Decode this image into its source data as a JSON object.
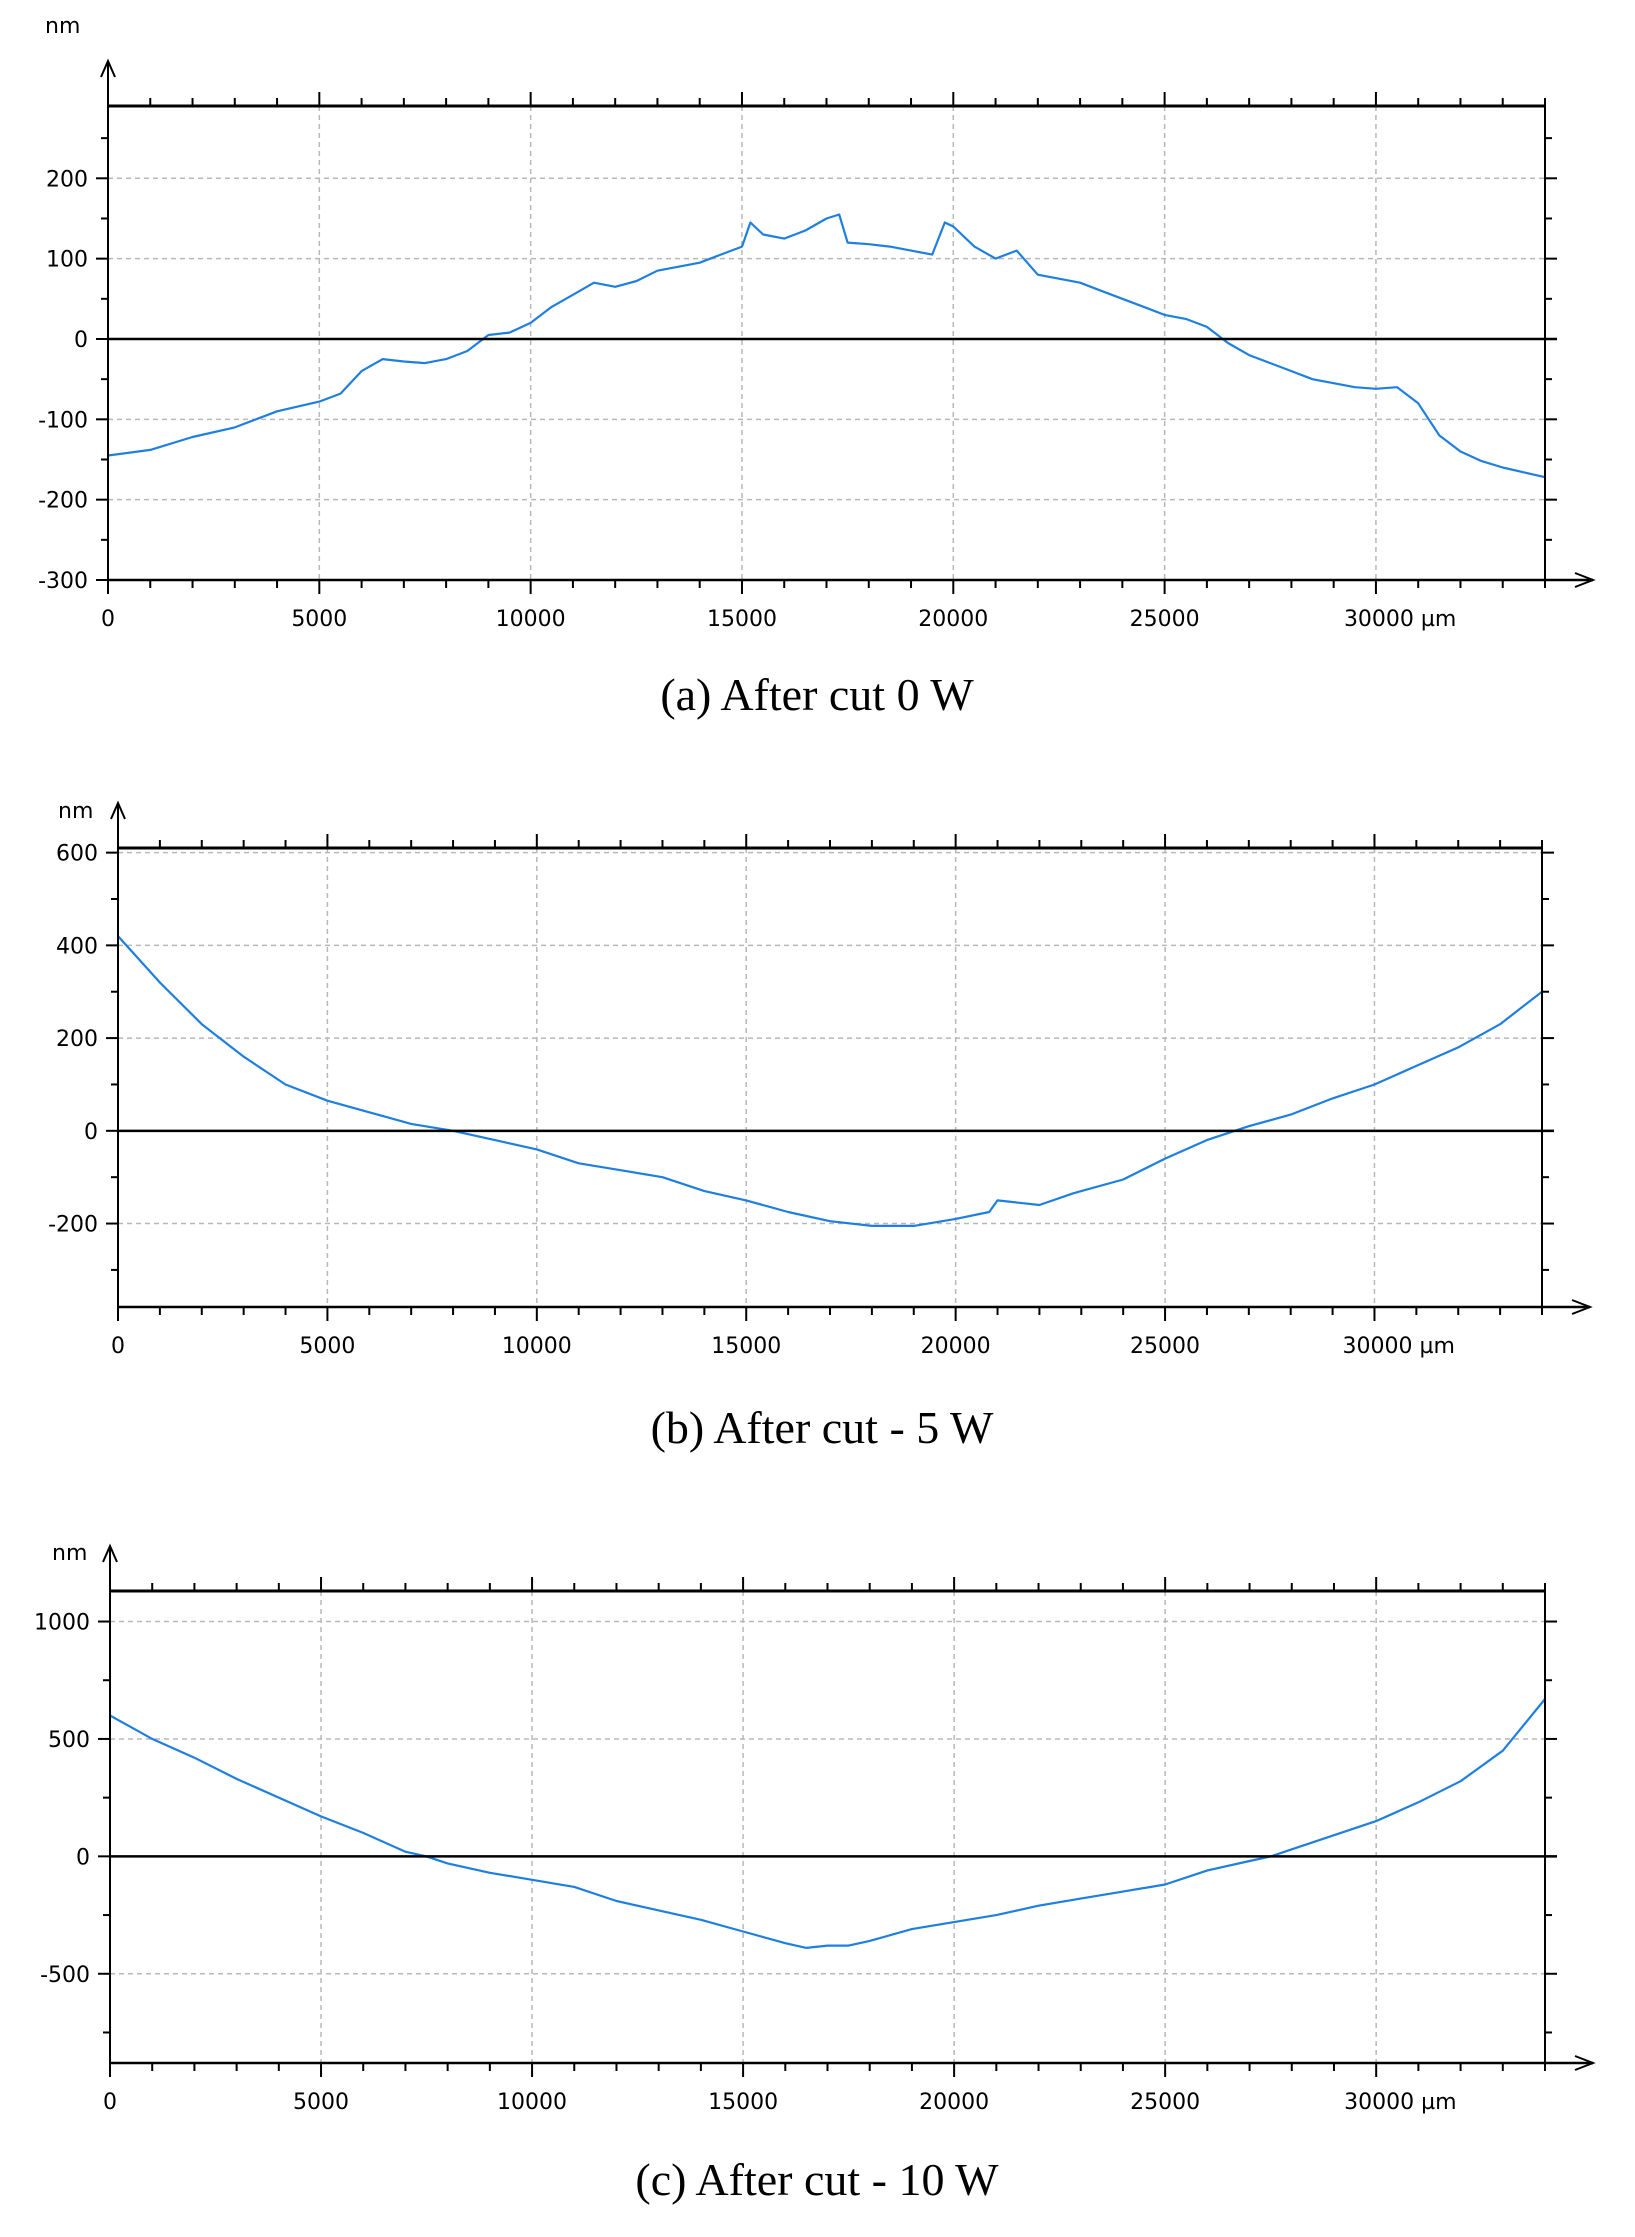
{
  "figure": {
    "panels": [
      {
        "caption": "(a) After cut 0 W",
        "y_unit": "nm",
        "x_unit_suffix": "µm"
      },
      {
        "caption": "(b) After cut - 5 W",
        "y_unit": "nm",
        "x_unit_suffix": "µm"
      },
      {
        "caption": "(c) After cut - 10 W",
        "y_unit": "nm",
        "x_unit_suffix": "µm"
      }
    ]
  },
  "colors": {
    "series": "#1f7fe0",
    "zero_line": "#000000",
    "grid": "#b8b8b8",
    "frame": "#000000"
  },
  "chart_data": [
    {
      "type": "line",
      "title": "(a) After cut 0 W",
      "ylabel": "nm",
      "xlabel": "µm",
      "xlim": [
        0,
        34000
      ],
      "ylim": [
        -300,
        290
      ],
      "xticks": [
        0,
        5000,
        10000,
        15000,
        20000,
        25000,
        30000
      ],
      "yticks": [
        200,
        100,
        0,
        -100,
        -200,
        -300
      ],
      "grid": true,
      "zero_line": true,
      "series": [
        {
          "x": [
            0,
            1000,
            2000,
            3000,
            4000,
            5000,
            5500,
            6000,
            6500,
            7000,
            7500,
            8000,
            8500,
            9000,
            9500,
            10000,
            10500,
            11000,
            11500,
            12000,
            12500,
            13000,
            13500,
            14000,
            14500,
            15000,
            15200,
            15500,
            16000,
            16500,
            17000,
            17300,
            17500,
            18000,
            18500,
            19000,
            19500,
            19800,
            20000,
            20500,
            21000,
            21500,
            22000,
            22500,
            23000,
            23500,
            24000,
            24500,
            25000,
            25500,
            26000,
            26500,
            27000,
            27500,
            28000,
            28500,
            29000,
            29500,
            30000,
            30500,
            31000,
            31500,
            32000,
            32500,
            33000,
            34000
          ],
          "y": [
            -145,
            -138,
            -122,
            -110,
            -90,
            -78,
            -68,
            -40,
            -25,
            -28,
            -30,
            -25,
            -15,
            5,
            8,
            20,
            40,
            55,
            70,
            65,
            72,
            85,
            90,
            95,
            105,
            115,
            145,
            130,
            125,
            135,
            150,
            155,
            120,
            118,
            115,
            110,
            105,
            145,
            140,
            115,
            100,
            110,
            80,
            75,
            70,
            60,
            50,
            40,
            30,
            25,
            15,
            -5,
            -20,
            -30,
            -40,
            -50,
            -55,
            -60,
            -62,
            -60,
            -80,
            -120,
            -140,
            -152,
            -160,
            -172
          ]
        }
      ]
    },
    {
      "type": "line",
      "title": "(b) After cut - 5 W",
      "ylabel": "nm",
      "xlabel": "µm",
      "xlim": [
        0,
        34000
      ],
      "ylim": [
        -380,
        610
      ],
      "xticks": [
        0,
        5000,
        10000,
        15000,
        20000,
        25000,
        30000
      ],
      "yticks": [
        600,
        400,
        200,
        0,
        -200
      ],
      "grid": true,
      "zero_line": true,
      "series": [
        {
          "x": [
            0,
            1000,
            2000,
            3000,
            4000,
            5000,
            6000,
            7000,
            8000,
            9000,
            10000,
            11000,
            12000,
            13000,
            14000,
            15000,
            16000,
            17000,
            18000,
            19000,
            20000,
            20800,
            21000,
            22000,
            22800,
            23000,
            24000,
            25000,
            26000,
            27000,
            28000,
            29000,
            30000,
            31000,
            32000,
            33000,
            34000
          ],
          "y": [
            420,
            320,
            230,
            160,
            100,
            65,
            40,
            15,
            0,
            -20,
            -40,
            -70,
            -85,
            -100,
            -130,
            -150,
            -175,
            -195,
            -205,
            -205,
            -190,
            -175,
            -150,
            -160,
            -135,
            -130,
            -105,
            -60,
            -20,
            10,
            35,
            70,
            100,
            140,
            180,
            230,
            300
          ]
        }
      ]
    },
    {
      "type": "line",
      "title": "(c) After cut - 10 W",
      "ylabel": "nm",
      "xlabel": "µm",
      "xlim": [
        0,
        34000
      ],
      "ylim": [
        -880,
        1130
      ],
      "xticks": [
        0,
        5000,
        10000,
        15000,
        20000,
        25000,
        30000
      ],
      "yticks": [
        1000,
        500,
        0,
        -500
      ],
      "grid": true,
      "zero_line": true,
      "series": [
        {
          "x": [
            0,
            1000,
            2000,
            3000,
            4000,
            5000,
            6000,
            7000,
            7500,
            8000,
            9000,
            10000,
            11000,
            12000,
            13000,
            14000,
            15000,
            16000,
            16500,
            17000,
            17500,
            18000,
            19000,
            20000,
            21000,
            22000,
            23000,
            24000,
            25000,
            26000,
            27000,
            27500,
            28000,
            29000,
            30000,
            31000,
            32000,
            33000,
            34000
          ],
          "y": [
            600,
            500,
            420,
            330,
            250,
            170,
            100,
            20,
            0,
            -30,
            -70,
            -100,
            -130,
            -190,
            -230,
            -270,
            -320,
            -370,
            -390,
            -380,
            -380,
            -360,
            -310,
            -280,
            -250,
            -210,
            -180,
            -150,
            -120,
            -60,
            -20,
            0,
            30,
            90,
            150,
            230,
            320,
            450,
            670
          ]
        }
      ]
    }
  ]
}
